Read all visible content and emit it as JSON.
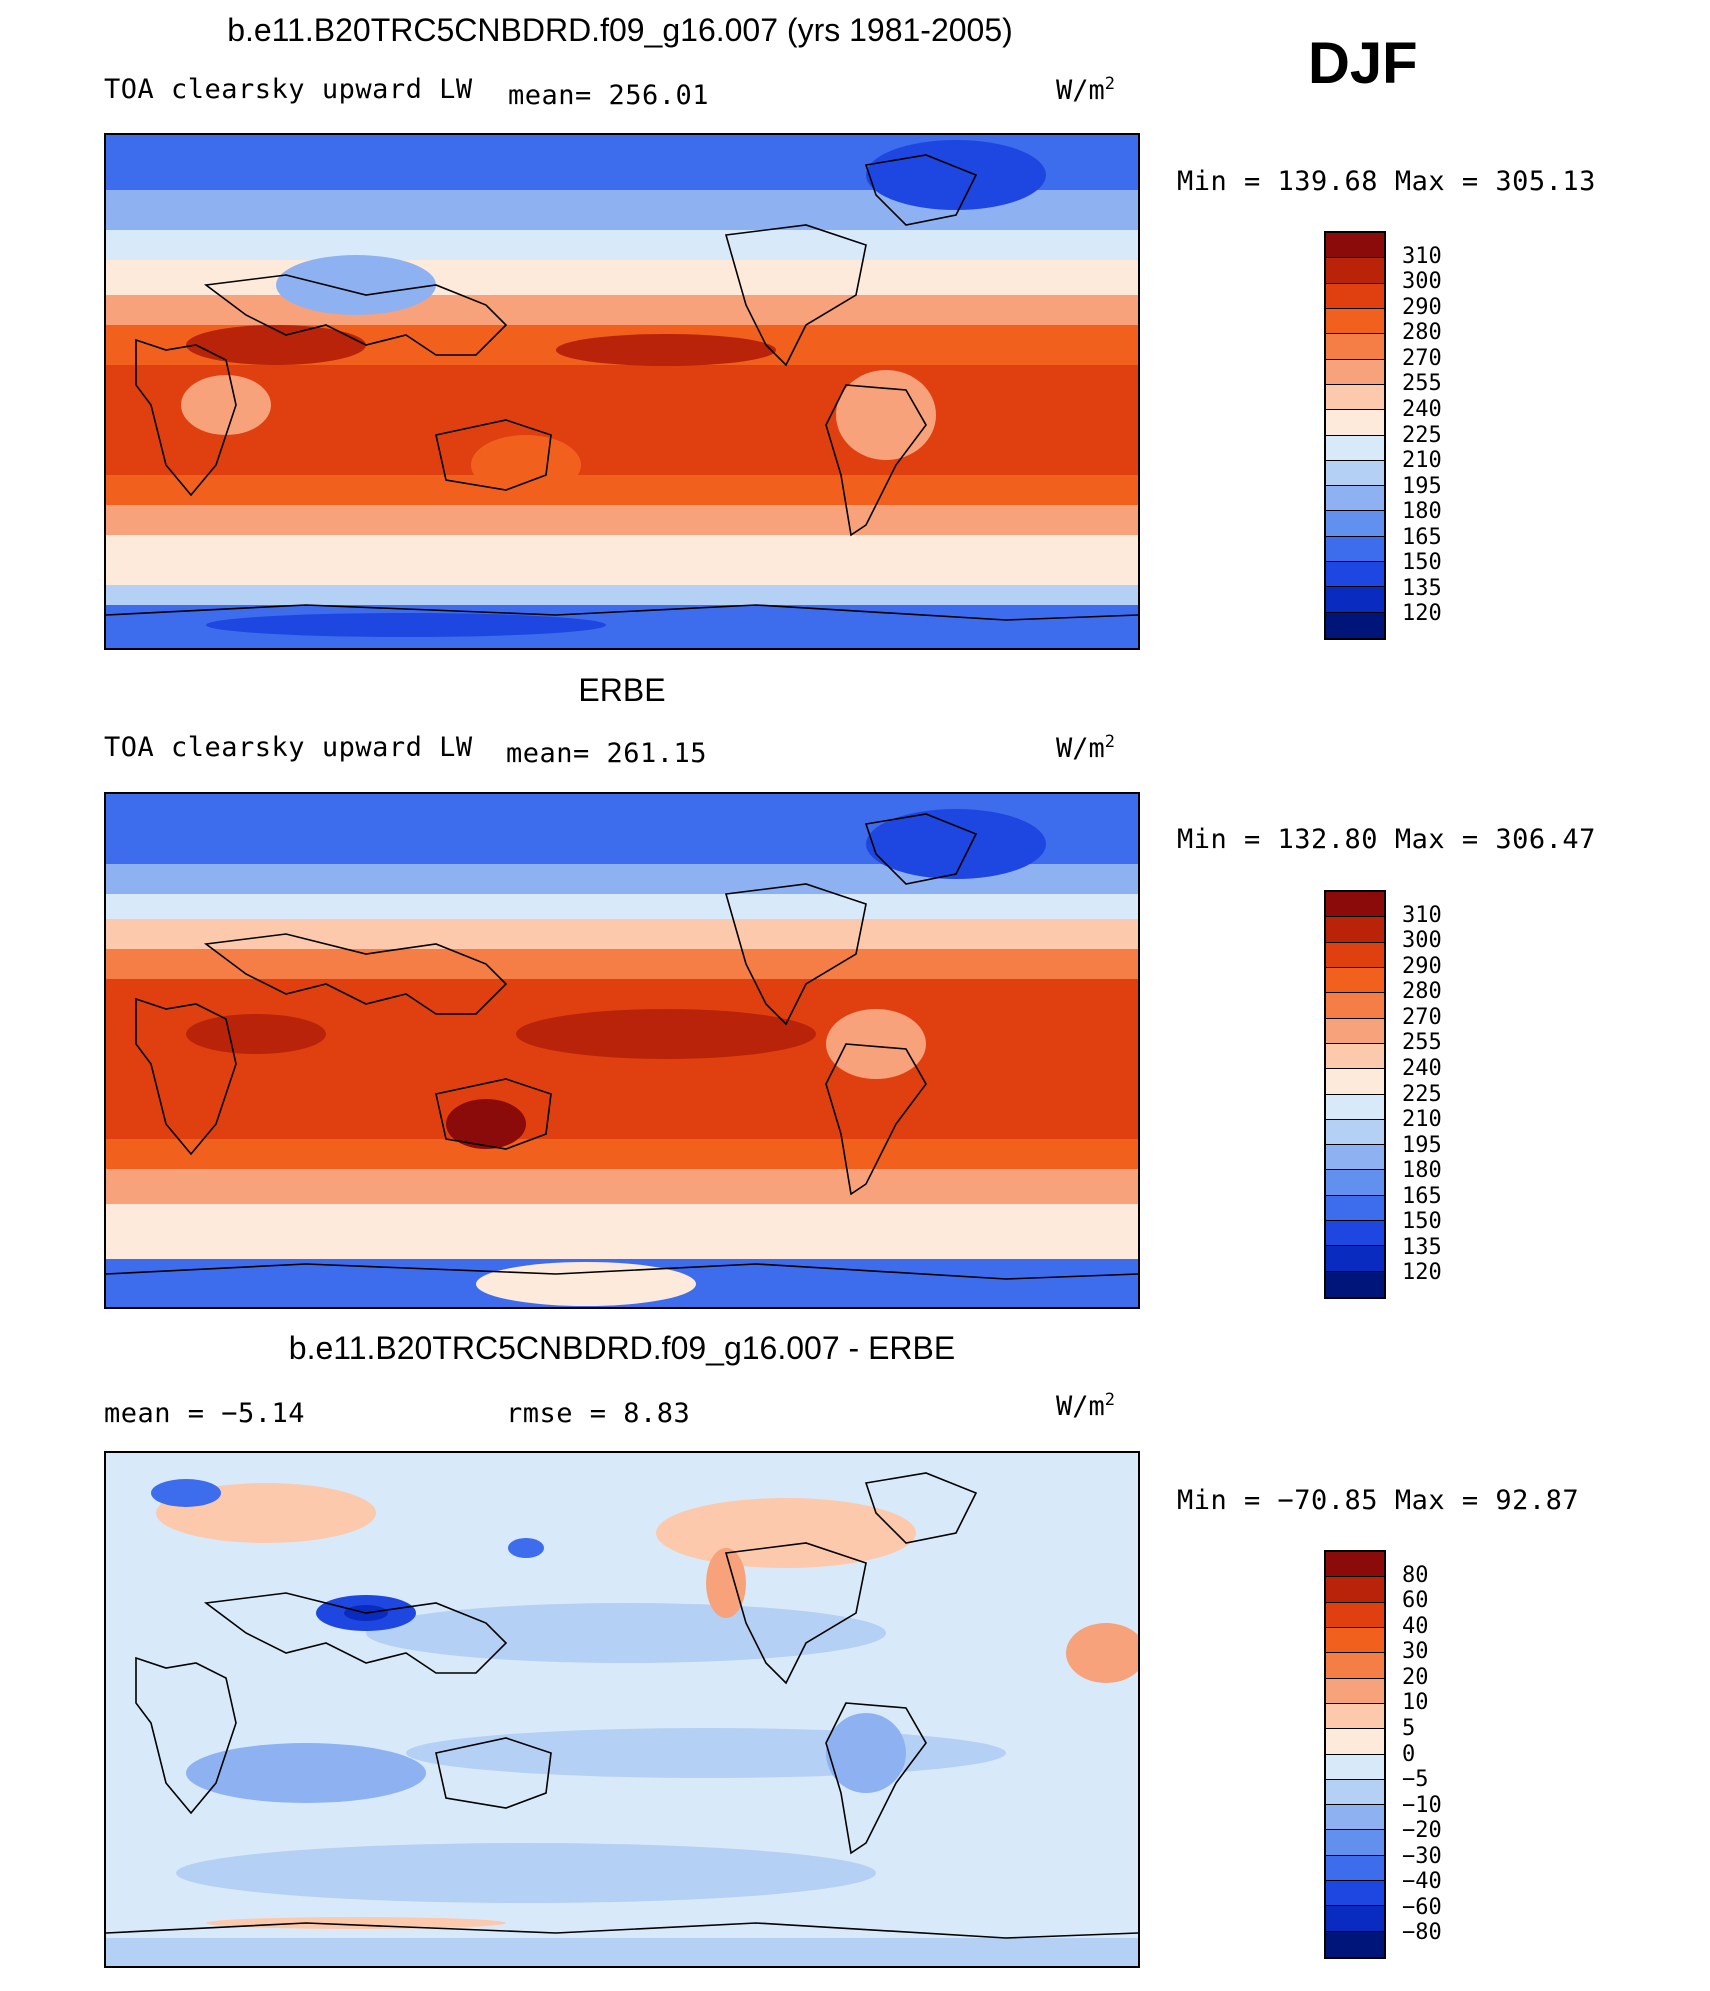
{
  "season": "DJF",
  "panel1": {
    "title": "b.e11.B20TRC5CNBDRD.f09_g16.007 (yrs 1981-2005)",
    "variable": "TOA clearsky upward LW",
    "stat": "mean=  256.01",
    "units_base": "W/m",
    "units_exp": "2",
    "minmax": "Min  =  139.68  Max  =  305.13"
  },
  "panel2": {
    "title": "ERBE",
    "variable": "TOA clearsky upward LW",
    "stat": "mean=  261.15",
    "units_base": "W/m",
    "units_exp": "2",
    "minmax": "Min  =  132.80  Max  =  306.47"
  },
  "panel3": {
    "title": "b.e11.B20TRC5CNBDRD.f09_g16.007 - ERBE",
    "stat_mean": "mean  =    −5.14",
    "stat_rmse": "rmse  =     8.83",
    "units_base": "W/m",
    "units_exp": "2",
    "minmax": "Min  =  −70.85  Max  =    92.87"
  },
  "colorbar_abs": {
    "labels": [
      "310",
      "300",
      "290",
      "280",
      "270",
      "255",
      "240",
      "225",
      "210",
      "195",
      "180",
      "165",
      "150",
      "135",
      "120"
    ],
    "colors": [
      "#8b0a0a",
      "#b8230a",
      "#e0400f",
      "#f2601e",
      "#f47e45",
      "#f7a27b",
      "#fcc9ad",
      "#fdeadb",
      "#d8eaf9",
      "#b5d0f5",
      "#8eb2f1",
      "#6290ee",
      "#3d6cec",
      "#1e46e0",
      "#0a2bc0",
      "#00157a"
    ]
  },
  "colorbar_diff": {
    "labels": [
      "80",
      "60",
      "40",
      "30",
      "20",
      "10",
      "5",
      "0",
      "−5",
      "−10",
      "−20",
      "−30",
      "−40",
      "−60",
      "−80"
    ],
    "colors": [
      "#8b0a0a",
      "#b8230a",
      "#e0400f",
      "#f2601e",
      "#f47e45",
      "#f7a27b",
      "#fcc9ad",
      "#fdeadb",
      "#d8eaf9",
      "#b5d0f5",
      "#8eb2f1",
      "#6290ee",
      "#3d6cec",
      "#1e46e0",
      "#0a2bc0",
      "#00157a"
    ]
  }
}
